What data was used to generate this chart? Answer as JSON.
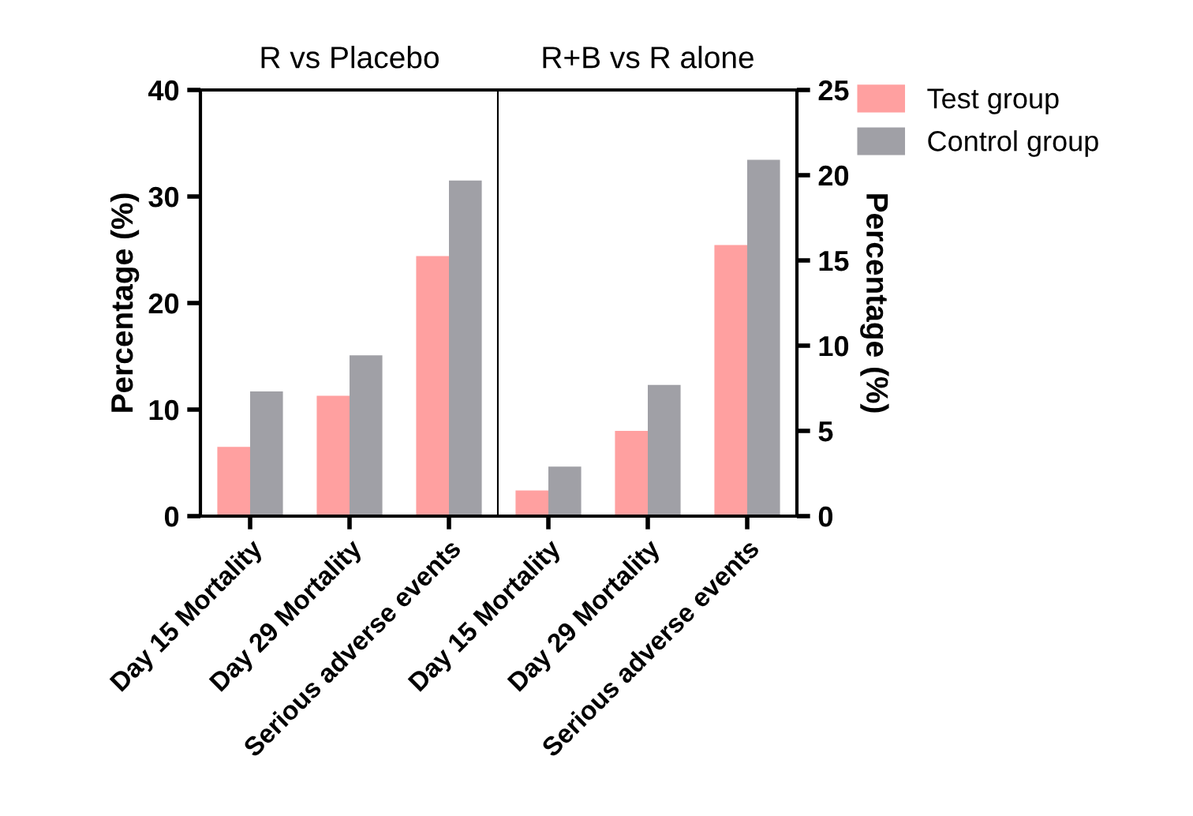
{
  "chart_data": [
    {
      "type": "bar",
      "title": "R vs Placebo",
      "ylabel": "Percentage (%)",
      "categories": [
        "Day 15 Mortality",
        "Day 29 Mortality",
        "Serious adverse events"
      ],
      "ylim": [
        0,
        40
      ],
      "yticks": [
        0,
        10,
        20,
        30,
        40
      ],
      "grid": false,
      "series": [
        {
          "color": "#ffa0a0",
          "values": [
            6.5,
            11.3,
            24.4
          ]
        },
        {
          "color": "#a0a0a6",
          "values": [
            11.7,
            15.1,
            31.5
          ]
        }
      ]
    },
    {
      "type": "bar",
      "title": "R+B vs R alone",
      "ylabel": "Percentage (%)",
      "categories": [
        "Day 15 Mortality",
        "Day 29 Mortality",
        "Serious adverse events"
      ],
      "ylim": [
        0,
        25
      ],
      "yticks": [
        0,
        5,
        10,
        15,
        20,
        25
      ],
      "grid": false,
      "legend": "top right",
      "series": [
        {
          "name": "Test group",
          "color": "#ffa0a0",
          "values": [
            1.5,
            5.0,
            15.9
          ]
        },
        {
          "name": "Control group",
          "color": "#a0a0a6",
          "values": [
            2.9,
            7.7,
            20.9
          ]
        }
      ]
    }
  ]
}
